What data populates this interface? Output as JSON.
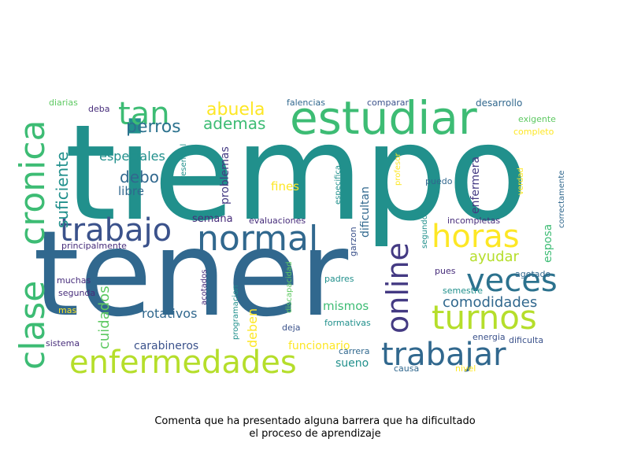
{
  "caption": {
    "line1": "Comenta que ha presentado alguna barrera que ha dificultado",
    "line2": "el proceso de aprendizaje"
  },
  "palette": {
    "teal": "#21908c",
    "blue": "#31688e",
    "navy": "#3b528b",
    "indigo": "#443a83",
    "purple": "#472d7b",
    "green": "#3dbc74",
    "lime": "#b5de2b",
    "yellow": "#fde725",
    "lightgreen": "#5ec962",
    "cyan": "#2c728e"
  },
  "words": [
    {
      "text": "tiempo",
      "color": "teal"
    },
    {
      "text": "tener",
      "color": "blue"
    },
    {
      "text": "estudiar",
      "color": "green"
    },
    {
      "text": "clase",
      "color": "green"
    },
    {
      "text": "cronica",
      "color": "green"
    },
    {
      "text": "tan",
      "color": "green"
    },
    {
      "text": "normal",
      "color": "blue"
    },
    {
      "text": "trabajo",
      "color": "navy"
    },
    {
      "text": "horas",
      "color": "yellow"
    },
    {
      "text": "turnos",
      "color": "lime"
    },
    {
      "text": "veces",
      "color": "cyan"
    },
    {
      "text": "trabajar",
      "color": "blue"
    },
    {
      "text": "enfermedades",
      "color": "lime"
    },
    {
      "text": "online",
      "color": "indigo"
    },
    {
      "text": "abuela",
      "color": "yellow"
    },
    {
      "text": "perros",
      "color": "cyan"
    },
    {
      "text": "ademas",
      "color": "green"
    },
    {
      "text": "suficiente",
      "color": "teal"
    },
    {
      "text": "debo",
      "color": "blue"
    },
    {
      "text": "especiales",
      "color": "teal"
    },
    {
      "text": "libre",
      "color": "blue"
    },
    {
      "text": "problemas",
      "color": "indigo"
    },
    {
      "text": "fines",
      "color": "yellow"
    },
    {
      "text": "semana",
      "color": "purple"
    },
    {
      "text": "comodidades",
      "color": "blue"
    },
    {
      "text": "ayudar",
      "color": "lime"
    },
    {
      "text": "cuidados",
      "color": "lightgreen"
    },
    {
      "text": "rotativos",
      "color": "blue"
    },
    {
      "text": "mismos",
      "color": "green"
    },
    {
      "text": "deben",
      "color": "yellow"
    },
    {
      "text": "carabineros",
      "color": "navy"
    },
    {
      "text": "funcionario",
      "color": "yellow"
    },
    {
      "text": "sueno",
      "color": "teal"
    },
    {
      "text": "esposa",
      "color": "green"
    },
    {
      "text": "enfermera",
      "color": "indigo"
    },
    {
      "text": "dificultan",
      "color": "blue"
    },
    {
      "text": "diarias",
      "color": "lightgreen"
    },
    {
      "text": "deba",
      "color": "purple"
    },
    {
      "text": "falencias",
      "color": "blue"
    },
    {
      "text": "comparar",
      "color": "navy"
    },
    {
      "text": "desarrollo",
      "color": "blue"
    },
    {
      "text": "exigente",
      "color": "lightgreen"
    },
    {
      "text": "completo",
      "color": "yellow"
    },
    {
      "text": "presencial",
      "color": "teal"
    },
    {
      "text": "especifica",
      "color": "teal"
    },
    {
      "text": "profesor",
      "color": "yellow"
    },
    {
      "text": "puedo",
      "color": "blue"
    },
    {
      "text": "verdad",
      "color": "yellow"
    },
    {
      "text": "correctamente",
      "color": "blue"
    },
    {
      "text": "evaluaciones",
      "color": "purple"
    },
    {
      "text": "incompletas",
      "color": "purple"
    },
    {
      "text": "principalmente",
      "color": "purple"
    },
    {
      "text": "garzon",
      "color": "navy"
    },
    {
      "text": "segundo",
      "color": "teal"
    },
    {
      "text": "agotado",
      "color": "blue"
    },
    {
      "text": "muchas",
      "color": "purple"
    },
    {
      "text": "segunda",
      "color": "purple"
    },
    {
      "text": "mas",
      "color": "yellow"
    },
    {
      "text": "acotados",
      "color": "purple"
    },
    {
      "text": "programacion",
      "color": "teal"
    },
    {
      "text": "discapacidad",
      "color": "lightgreen"
    },
    {
      "text": "padres",
      "color": "teal"
    },
    {
      "text": "pues",
      "color": "purple"
    },
    {
      "text": "semestre",
      "color": "teal"
    },
    {
      "text": "deja",
      "color": "navy"
    },
    {
      "text": "formativas",
      "color": "teal"
    },
    {
      "text": "energia",
      "color": "navy"
    },
    {
      "text": "dificulta",
      "color": "navy"
    },
    {
      "text": "sistema",
      "color": "purple"
    },
    {
      "text": "carrera",
      "color": "blue"
    },
    {
      "text": "causa",
      "color": "blue"
    },
    {
      "text": "nivel",
      "color": "yellow"
    }
  ]
}
